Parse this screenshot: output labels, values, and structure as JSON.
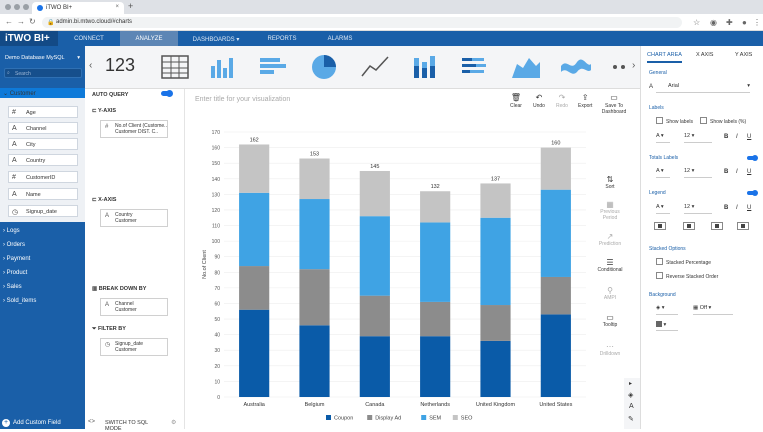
{
  "browser": {
    "tab_title": "iTWO BI+",
    "url": "admin.bi.mtwo.cloud/#charts"
  },
  "app": {
    "logo": "iTWO BI+",
    "nav": [
      "CONNECT",
      "ANALYZE",
      "DASHBOARDS ▾",
      "REPORTS",
      "ALARMS"
    ],
    "active_nav": "ANALYZE"
  },
  "sidebar": {
    "database": "Demo Database MySQL",
    "search_placeholder": "Search",
    "customer_label": "Customer",
    "fields": [
      {
        "icon": "#",
        "name": "Age"
      },
      {
        "icon": "A",
        "name": "Channel"
      },
      {
        "icon": "A",
        "name": "City"
      },
      {
        "icon": "A",
        "name": "Country"
      },
      {
        "icon": "#",
        "name": "CustomerID"
      },
      {
        "icon": "A",
        "name": "Name"
      },
      {
        "icon": "◷",
        "name": "Signup_date"
      }
    ],
    "groups": [
      "Logs",
      "Orders",
      "Payment",
      "Product",
      "Sales",
      "Sold_items"
    ],
    "add_custom_field": "Add Custom Field"
  },
  "query": {
    "number_label": "123",
    "auto_query": "AUTO QUERY",
    "y_axis": "Y-AXIS",
    "y_item": {
      "line1": "No.of Client (Custome..",
      "line2": "Customer      DIST. C.."
    },
    "x_axis": "X-AXIS",
    "x_item": {
      "line1": "Country",
      "line2": "Customer"
    },
    "break_down": "BREAK DOWN BY",
    "bd_item": {
      "line1": "Channel",
      "line2": "Customer"
    },
    "filter_by": "FILTER BY",
    "filter_item": {
      "line1": "Signup_date",
      "line2": "Customer"
    },
    "sql_mode": "SWITCH TO SQL MODE"
  },
  "toolbar": {
    "title_placeholder": "Enter title for your visualization",
    "actions": [
      "Clear",
      "Undo",
      "Redo",
      "Export",
      "Save To Dashboard"
    ]
  },
  "tools": [
    "Sort",
    "Previous Period",
    "Prediction",
    "Conditional",
    "AMPI",
    "Tooltip",
    "Drilldown"
  ],
  "chart_data": {
    "type": "bar",
    "stacked": true,
    "categories": [
      "Australia",
      "Belgium",
      "Canada",
      "Netherlands",
      "United Kingdom",
      "United States"
    ],
    "series": [
      {
        "name": "Coupon",
        "color": "#0a5ba8",
        "values": [
          56,
          46,
          39,
          39,
          36,
          53
        ]
      },
      {
        "name": "Display Ad",
        "color": "#8c8c8c",
        "values": [
          28,
          36,
          26,
          22,
          23,
          24
        ]
      },
      {
        "name": "SEM",
        "color": "#3fa3e4",
        "values": [
          47,
          45,
          51,
          51,
          56,
          56
        ]
      },
      {
        "name": "SEO",
        "color": "#c4c4c4",
        "values": [
          31,
          26,
          29,
          20,
          22,
          27
        ]
      }
    ],
    "totals": [
      162,
      153,
      145,
      132,
      137,
      160
    ],
    "ylabel": "No.of Client",
    "ylim": [
      0,
      170
    ],
    "yticks": [
      0,
      10,
      20,
      30,
      40,
      50,
      60,
      70,
      80,
      90,
      100,
      110,
      120,
      130,
      140,
      150,
      160,
      170
    ],
    "grid": true,
    "legend": "bottom"
  },
  "right": {
    "tabs": [
      "CHART AREA",
      "X AXIS",
      "Y AXIS"
    ],
    "general": "General",
    "font": "Arial",
    "labels": "Labels",
    "show_labels": "Show labels",
    "show_labels_pct": "Show labels (%)",
    "size": "12",
    "b": "B",
    "i": "I",
    "u": "U",
    "totals_labels": "Totals Labels",
    "legend": "Legend",
    "stacked_options": "Stacked Options",
    "stacked_pct": "Stacked Percentage",
    "reverse_stacked": "Reverse Stacked Order",
    "background": "Background",
    "off": "Off"
  }
}
